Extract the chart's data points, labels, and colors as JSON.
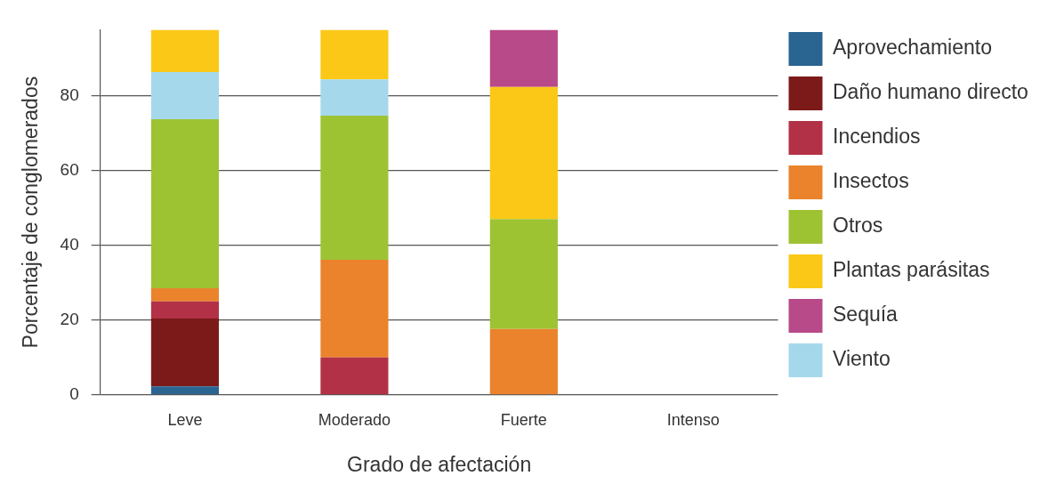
{
  "chart_data": {
    "type": "bar",
    "stacked": true,
    "xlabel": "Grado de afectación",
    "ylabel": "Porcentaje de conglomerados",
    "categories": [
      "Leve",
      "Moderado",
      "Fuerte",
      "Intenso"
    ],
    "series": [
      {
        "name": "Aprovechamiento",
        "color": "#2a6491",
        "values": [
          2.3,
          null,
          null,
          null
        ]
      },
      {
        "name": "Daño humano directo",
        "color": "#7c1a1a",
        "values": [
          18.1,
          null,
          null,
          null
        ]
      },
      {
        "name": "Incendios",
        "color": "#b33146",
        "values": [
          4.6,
          10,
          null,
          null
        ]
      },
      {
        "name": "Insectos",
        "color": "#ea832c",
        "values": [
          3.5,
          26.1,
          17.6,
          null
        ]
      },
      {
        "name": "Otros",
        "color": "#9dc333",
        "values": [
          45.2,
          38.5,
          29.4,
          null
        ]
      },
      {
        "name": "Viento",
        "color": "#a6d8ec",
        "values": [
          12.6,
          9.7,
          null,
          null
        ]
      },
      {
        "name": "Plantas parásitas",
        "color": "#fbc818",
        "values": [
          11.3,
          13.3,
          35.3,
          null
        ]
      },
      {
        "name": "Sequía",
        "color": "#b84a89",
        "values": [
          null,
          null,
          15.3,
          null
        ]
      }
    ],
    "ylim": [
      0,
      97.6
    ],
    "yticks": [
      0,
      20,
      40,
      60,
      80
    ],
    "grid": "y",
    "legend": "right"
  }
}
